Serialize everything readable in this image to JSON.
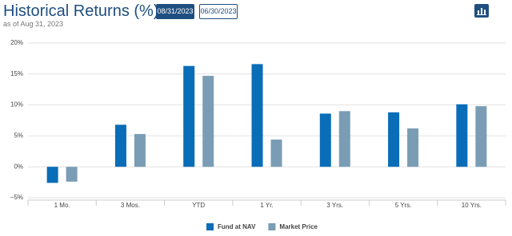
{
  "header": {
    "title": "Historical Returns (%)",
    "as_of": "as of Aug 31, 2023",
    "buttons": [
      "08/31/2023",
      "06/30/2023"
    ]
  },
  "chart_data": {
    "type": "bar",
    "categories": [
      "1 Mo.",
      "3 Mos.",
      "YTD",
      "1 Yr.",
      "3 Yrs.",
      "5 Yrs.",
      "10 Yrs."
    ],
    "series": [
      {
        "name": "Fund at NAV",
        "color": "#0a6db8",
        "values": [
          -2.6,
          6.8,
          16.3,
          16.6,
          8.6,
          8.8,
          10.1
        ]
      },
      {
        "name": "Market Price",
        "color": "#7a9db5",
        "values": [
          -2.4,
          5.3,
          14.7,
          4.4,
          9.0,
          6.2,
          9.8
        ]
      }
    ],
    "ylim": [
      -5,
      20
    ],
    "yticks": [
      {
        "value": -5,
        "label": "−5%"
      },
      {
        "value": 0,
        "label": "0%"
      },
      {
        "value": 5,
        "label": "5%"
      },
      {
        "value": 10,
        "label": "10%"
      },
      {
        "value": 15,
        "label": "15%"
      },
      {
        "value": 20,
        "label": "20%"
      }
    ],
    "grid": true,
    "legend": "bottom"
  }
}
